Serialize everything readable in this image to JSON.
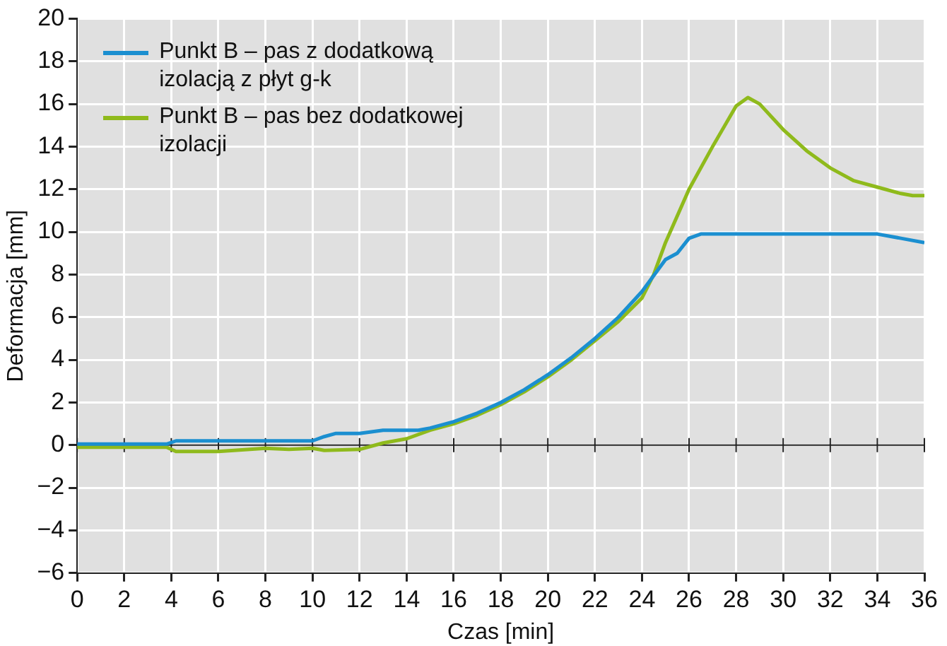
{
  "chart_data": {
    "type": "line",
    "xlabel": "Czas [min]",
    "ylabel": "Deformacja [mm]",
    "xlim": [
      0,
      36
    ],
    "xticks": [
      0,
      2,
      4,
      6,
      8,
      10,
      12,
      14,
      16,
      18,
      20,
      22,
      24,
      26,
      28,
      30,
      32,
      34,
      36
    ],
    "ylim": [
      -6,
      20
    ],
    "yticks": [
      -6,
      -4,
      -2,
      0,
      2,
      4,
      6,
      8,
      10,
      12,
      14,
      16,
      18,
      20
    ],
    "grid": true,
    "legend": "top left",
    "marker": "none",
    "line_style": "solid",
    "series": [
      {
        "name": "Punkt B – pas z dodatkową izolacją z płyt g-k",
        "color": "#1b8fd0",
        "x": [
          0,
          3.8,
          4.2,
          10,
          10.5,
          11,
          12,
          13,
          14.5,
          15,
          16,
          17,
          18,
          19,
          20,
          21,
          22,
          23,
          24,
          25,
          25.5,
          26,
          26.5,
          34,
          35,
          36
        ],
        "values": [
          0.05,
          0.05,
          0.2,
          0.2,
          0.4,
          0.55,
          0.55,
          0.7,
          0.7,
          0.8,
          1.1,
          1.5,
          2.0,
          2.6,
          3.3,
          4.1,
          5.0,
          6.0,
          7.2,
          8.7,
          9.0,
          9.7,
          9.9,
          9.9,
          9.7,
          9.5
        ]
      },
      {
        "name": "Punkt B – pas bez dodatkowej izolacji",
        "color": "#8fba1c",
        "x": [
          0,
          3.8,
          4.2,
          6,
          8,
          9,
          10,
          10.5,
          12,
          13,
          14,
          15,
          16,
          17,
          18,
          19,
          20,
          21,
          22,
          23,
          24,
          24.5,
          25,
          26,
          27,
          28,
          28.5,
          29,
          30,
          31,
          32,
          33,
          34,
          35,
          35.5,
          36
        ],
        "values": [
          -0.1,
          -0.1,
          -0.3,
          -0.3,
          -0.15,
          -0.2,
          -0.15,
          -0.25,
          -0.2,
          0.1,
          0.3,
          0.7,
          1.0,
          1.4,
          1.9,
          2.5,
          3.2,
          4.0,
          4.9,
          5.8,
          6.9,
          8.0,
          9.5,
          12.0,
          14.0,
          15.9,
          16.3,
          16.0,
          14.8,
          13.8,
          13.0,
          12.4,
          12.1,
          11.8,
          11.7,
          11.7
        ]
      }
    ]
  }
}
